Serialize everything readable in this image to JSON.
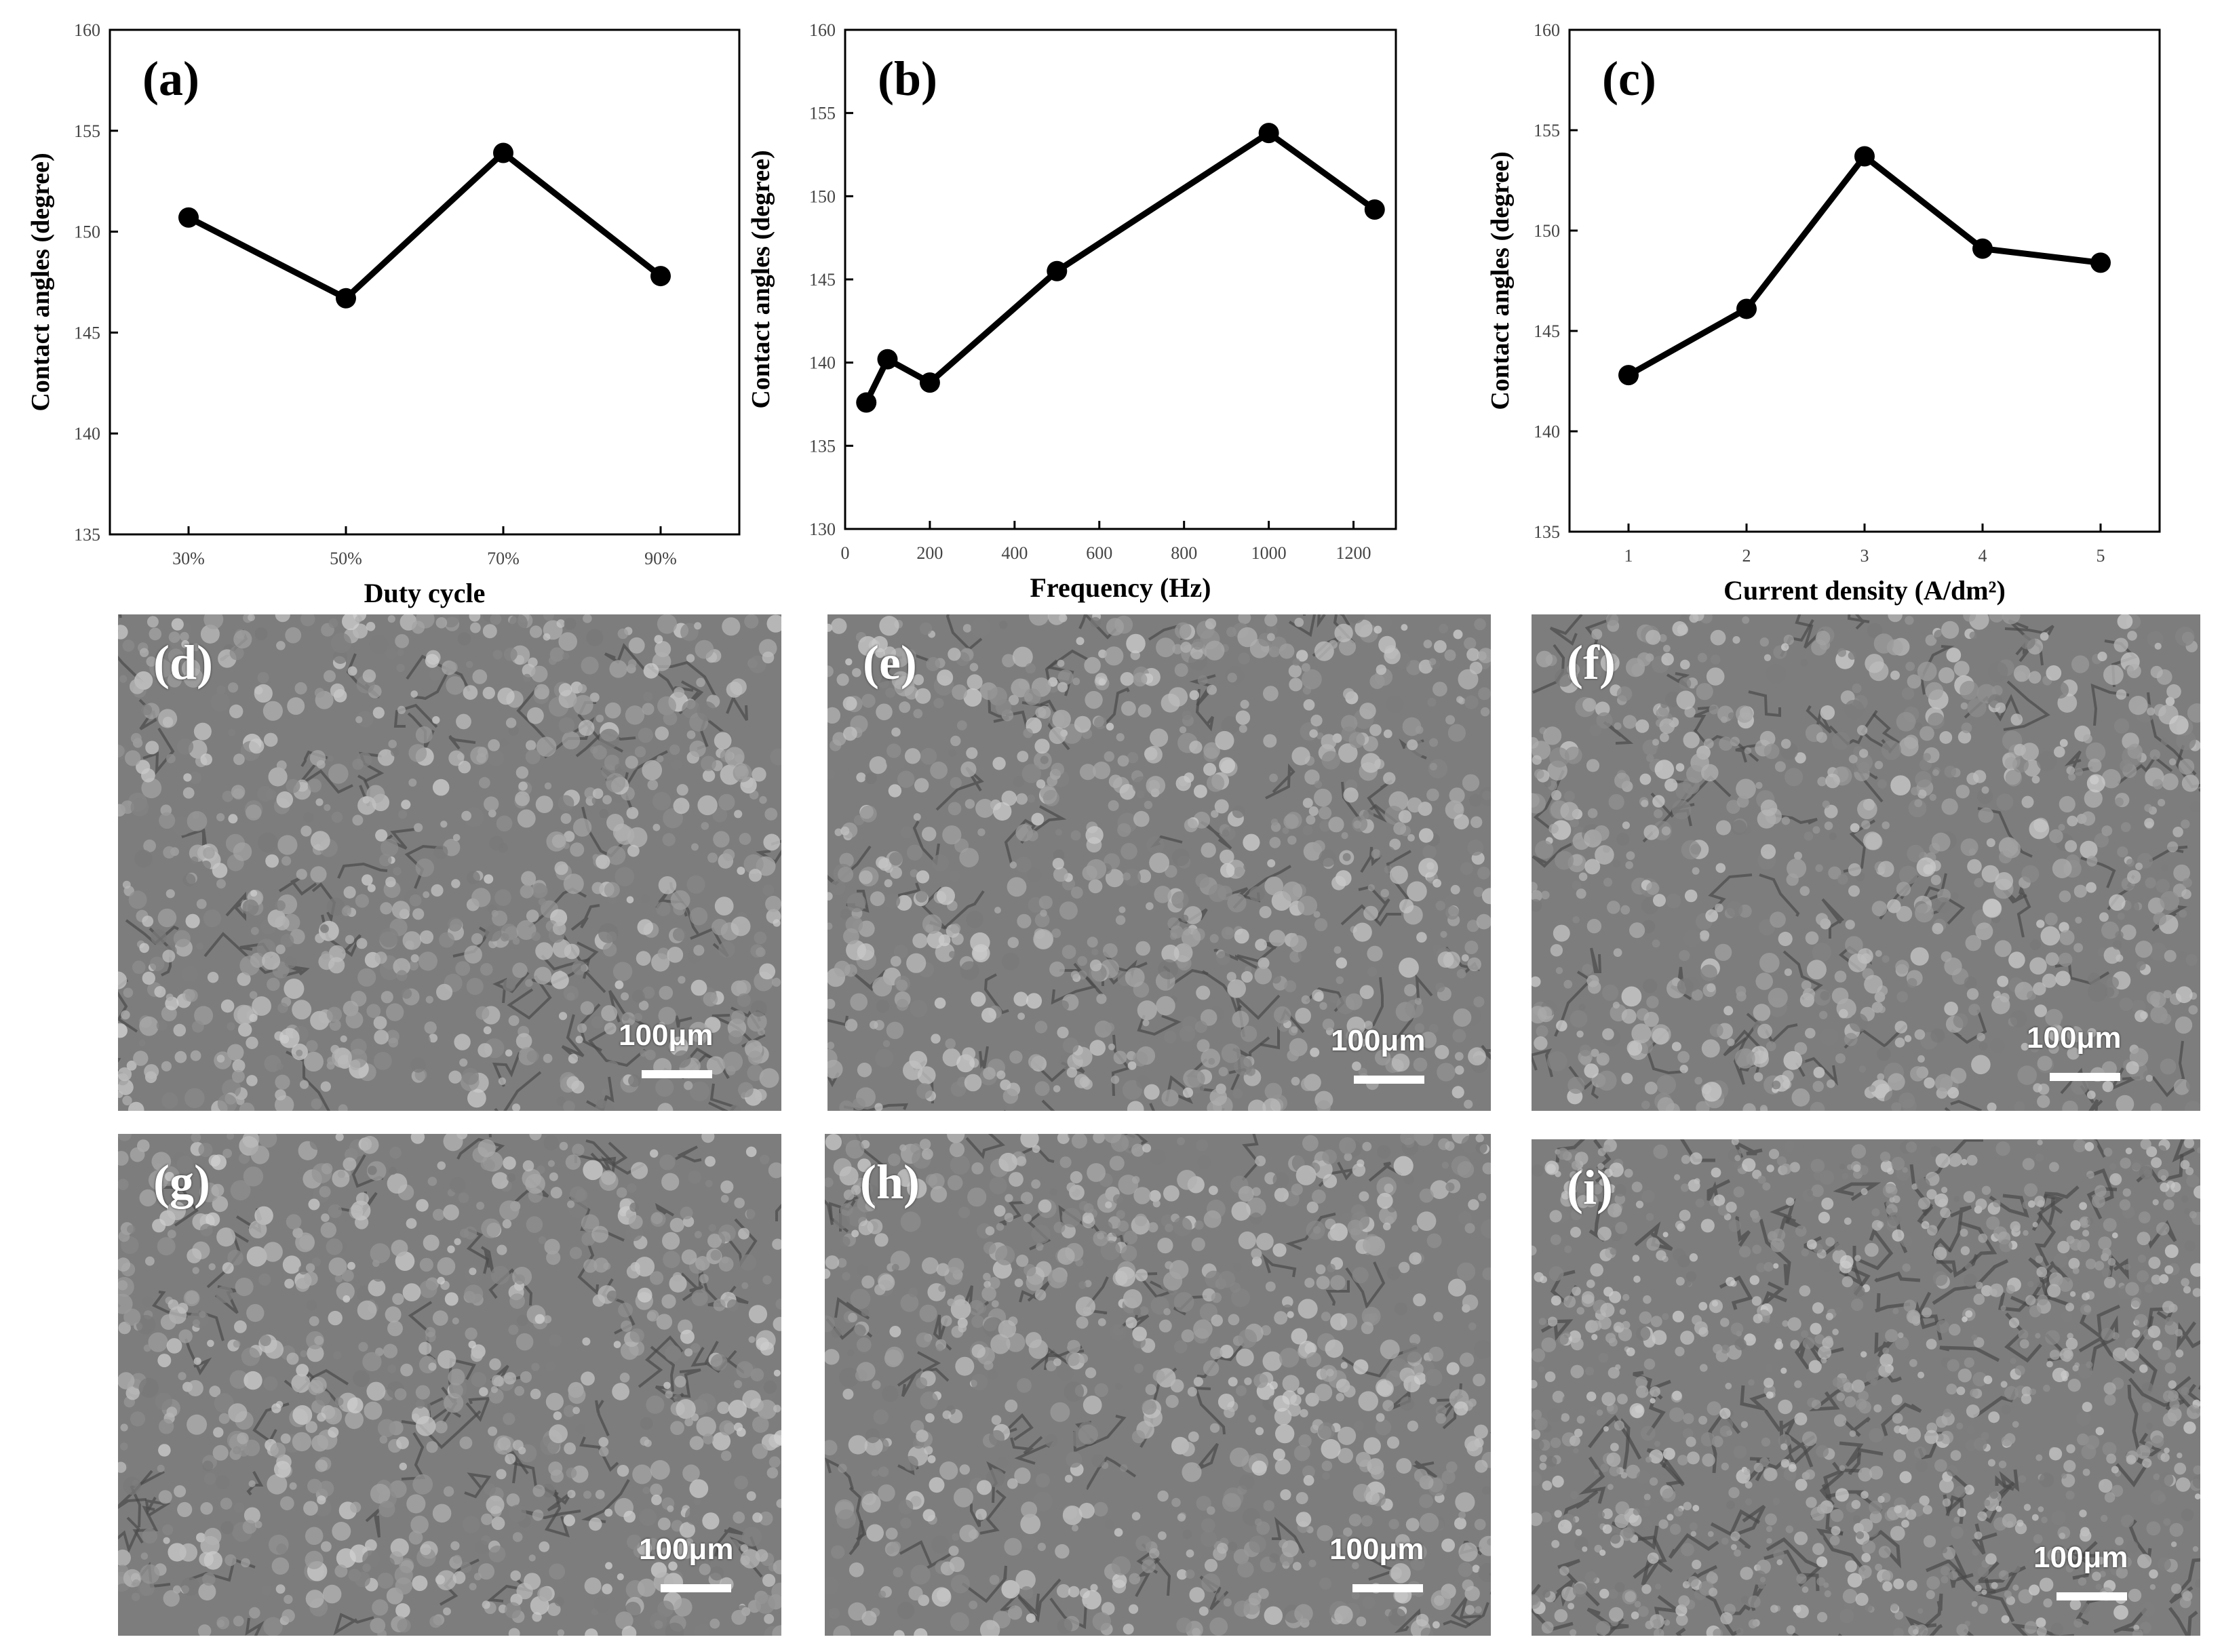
{
  "chart_data": [
    {
      "type": "line",
      "panel": "(a)",
      "xlabel": "Duty cycle",
      "ylabel": "Contact angles (degree)",
      "x_scale": "categorical",
      "categories": [
        "30%",
        "50%",
        "70%",
        "90%"
      ],
      "series": [
        {
          "values": [
            150.7,
            146.7,
            153.9,
            147.8
          ]
        }
      ],
      "ylim": [
        135,
        160
      ],
      "yticks": [
        135,
        140,
        145,
        150,
        155,
        160
      ],
      "grid": false,
      "color": "#000000"
    },
    {
      "type": "line",
      "panel": "(b)",
      "xlabel": "Frequency (Hz)",
      "ylabel": "Contact angles (degree)",
      "x_scale": "linear",
      "x": [
        50,
        100,
        200,
        500,
        1000,
        1250
      ],
      "series": [
        {
          "values": [
            137.6,
            140.2,
            138.8,
            145.5,
            153.8,
            149.2
          ]
        }
      ],
      "xlim": [
        0,
        1300
      ],
      "xticks": [
        0,
        200,
        400,
        600,
        800,
        1000,
        1200
      ],
      "ylim": [
        130,
        160
      ],
      "yticks": [
        130,
        135,
        140,
        145,
        150,
        155,
        160
      ],
      "grid": false,
      "color": "#000000"
    },
    {
      "type": "line",
      "panel": "(c)",
      "xlabel": "Current density (A/dm²)",
      "ylabel": "Contact angles (degree)",
      "x_scale": "linear",
      "x": [
        1,
        2,
        3,
        4,
        5
      ],
      "series": [
        {
          "values": [
            142.8,
            146.1,
            153.7,
            149.1,
            148.4
          ]
        }
      ],
      "xlim": [
        0.5,
        5.5
      ],
      "xticks": [
        1,
        2,
        3,
        4,
        5
      ],
      "ylim": [
        135,
        160
      ],
      "yticks": [
        135,
        140,
        145,
        150,
        155,
        160
      ],
      "grid": false,
      "color": "#000000"
    }
  ],
  "micrographs": [
    {
      "label": "(d)",
      "scale": "100μm"
    },
    {
      "label": "(e)",
      "scale": "100μm"
    },
    {
      "label": "(f)",
      "scale": "100μm"
    },
    {
      "label": "(g)",
      "scale": "100μm"
    },
    {
      "label": "(h)",
      "scale": "100μm"
    },
    {
      "label": "(i)",
      "scale": "100μm"
    }
  ]
}
